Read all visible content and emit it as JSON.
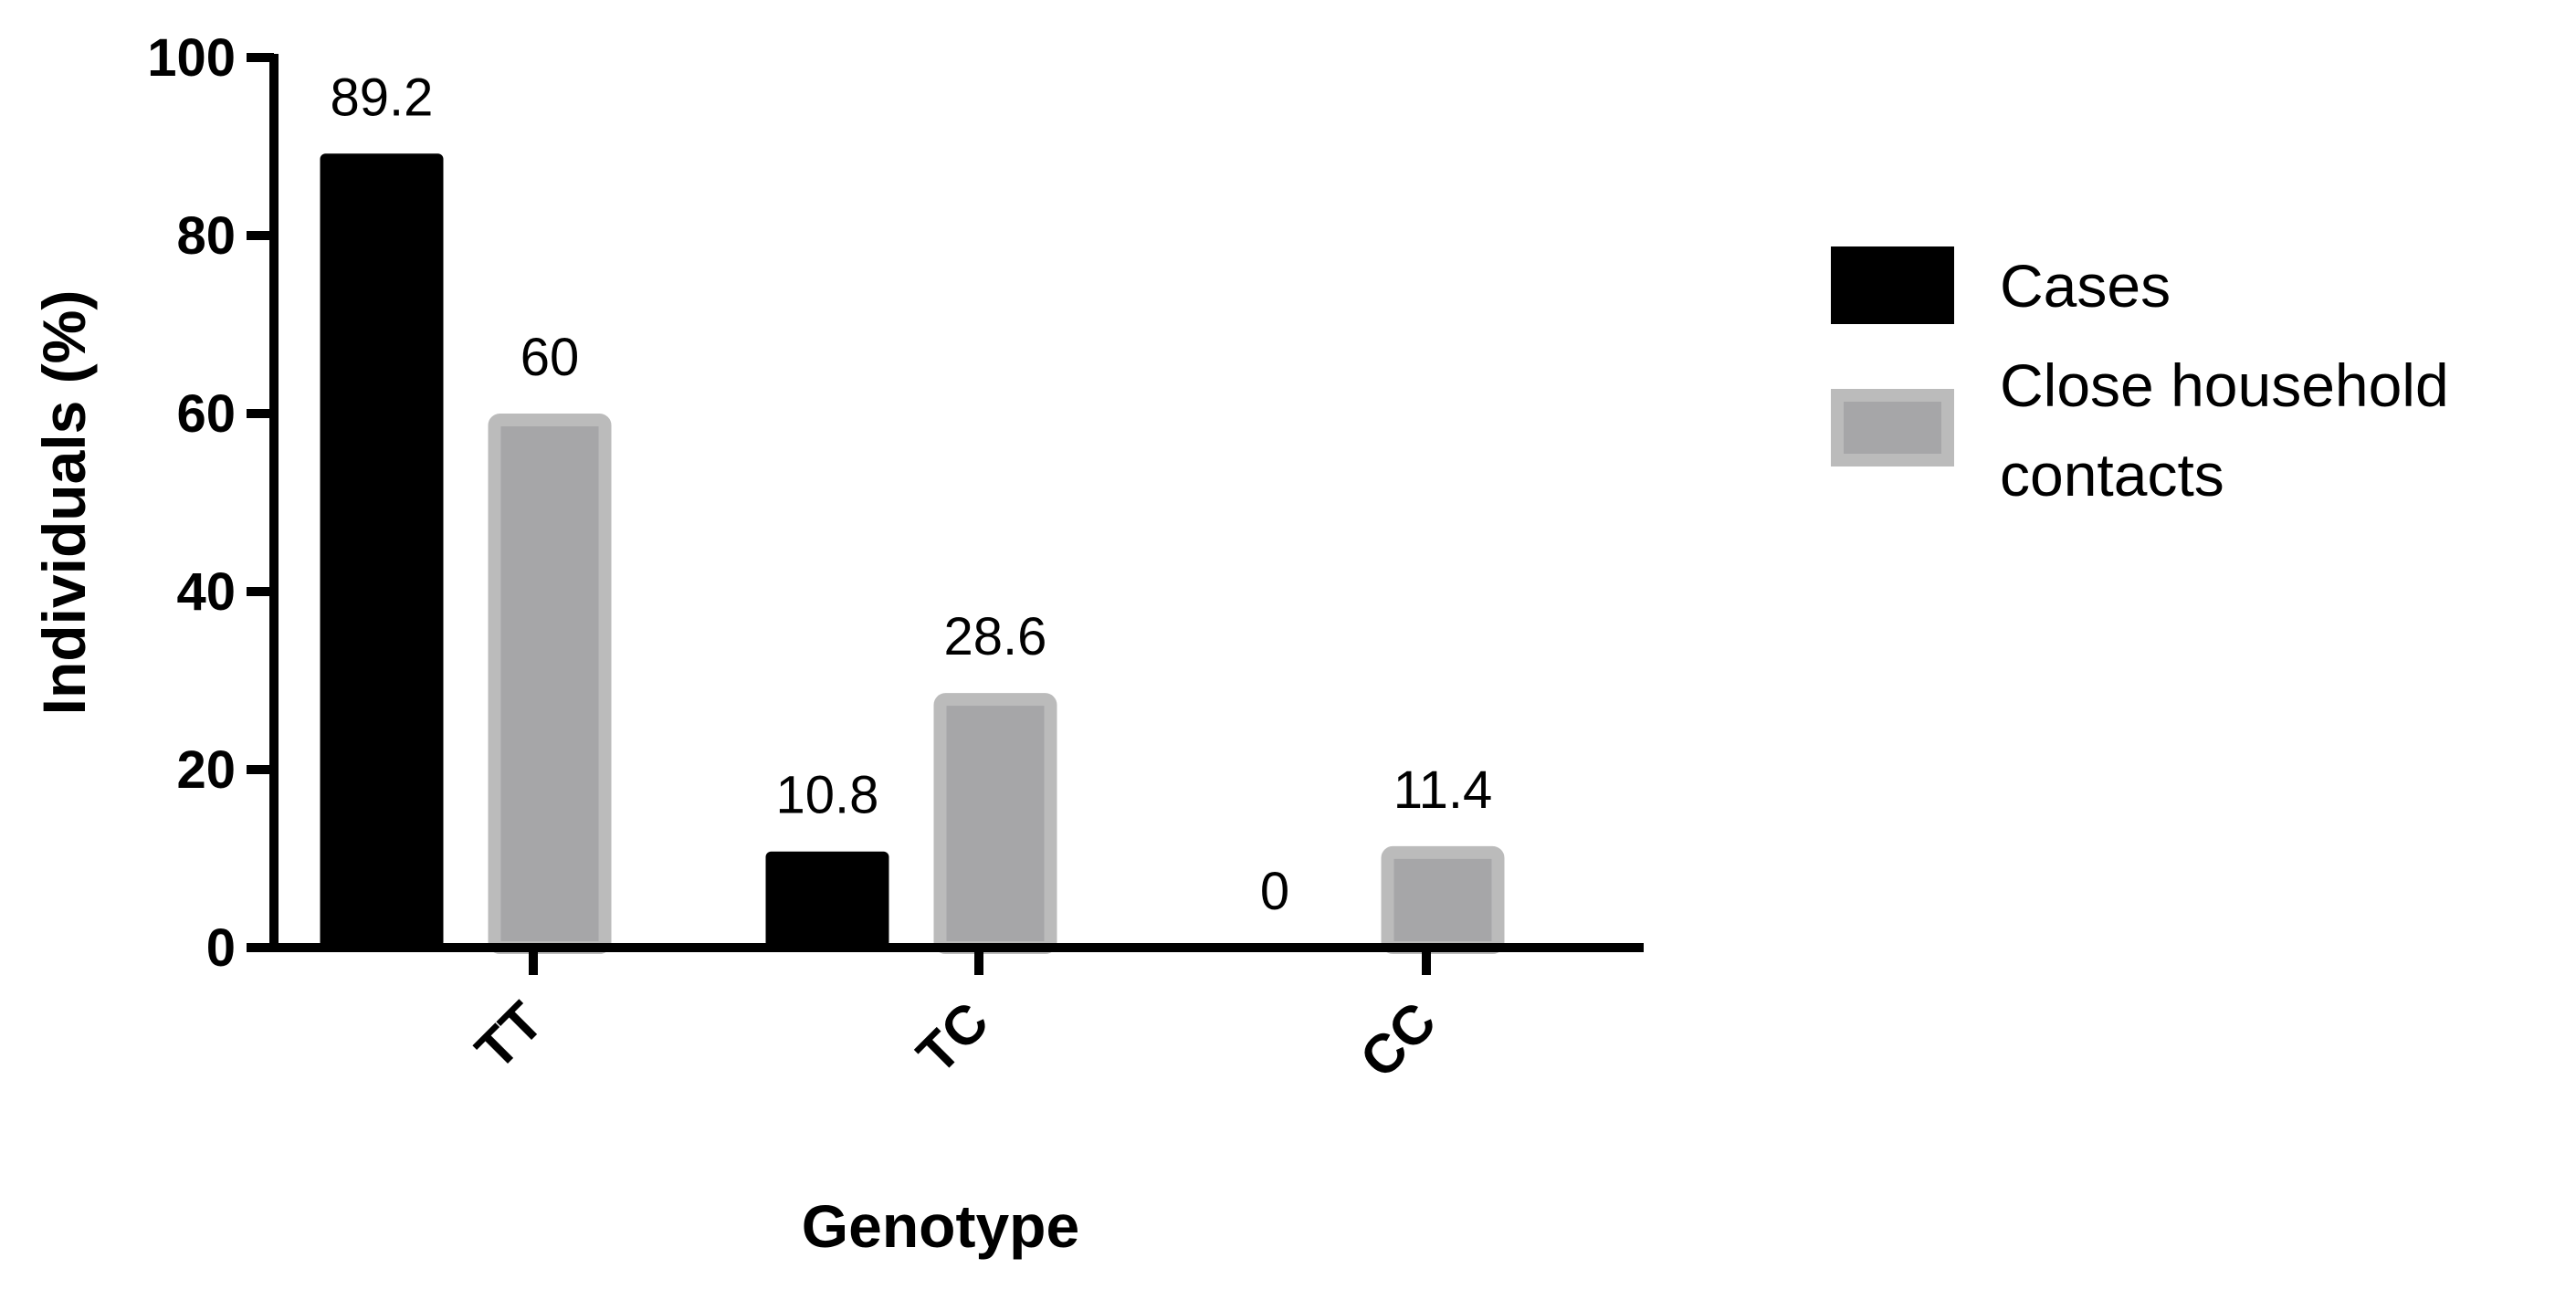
{
  "chart_data": {
    "type": "bar",
    "title": "",
    "xlabel": "Genotype",
    "ylabel": "Individuals (%)",
    "ylim": [
      0,
      100
    ],
    "yticks": [
      "0",
      "20",
      "40",
      "60",
      "80",
      "100"
    ],
    "categories": [
      "TT",
      "TC",
      "CC"
    ],
    "series": [
      {
        "name": "Cases",
        "values": [
          89.2,
          10.8,
          0
        ],
        "labels": [
          "89.2",
          "10.8",
          "0"
        ],
        "color": "#000000"
      },
      {
        "name": "Close household contacts",
        "legend_lines": [
          "Close household",
          "contacts"
        ],
        "values": [
          60,
          28.6,
          11.4
        ],
        "labels": [
          "60",
          "28.6",
          "11.4"
        ],
        "color": "#a6a6a8",
        "border_color": "#bbbbbb"
      }
    ],
    "legend_position": "right",
    "grid": false
  }
}
